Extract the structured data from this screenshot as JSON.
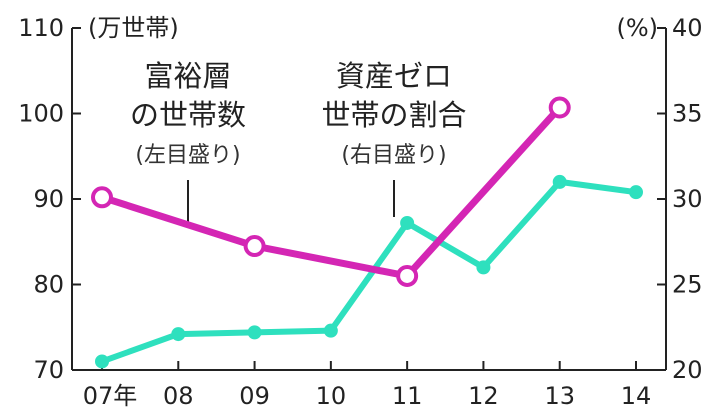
{
  "chart_data": {
    "type": "line",
    "categories": [
      "07年",
      "08",
      "09",
      "10",
      "11",
      "12",
      "13",
      "14"
    ],
    "x": [
      2007,
      2008,
      2009,
      2010,
      2011,
      2012,
      2013,
      2014
    ],
    "left_axis": {
      "unit": "(万世帯)",
      "range": [
        70,
        110
      ],
      "ticks": [
        "70",
        "80",
        "90",
        "100",
        "110"
      ]
    },
    "right_axis": {
      "unit": "(%)",
      "range": [
        20,
        40
      ],
      "ticks": [
        "20",
        "25",
        "30",
        "35",
        "40"
      ]
    },
    "series": [
      {
        "name_lines": [
          "富裕層",
          "の世帯数"
        ],
        "note": "(左目盛り)",
        "axis": "left",
        "color": "#d426b4",
        "points": [
          {
            "x": 2007,
            "y": 90.2
          },
          {
            "x": 2009,
            "y": 84.5
          },
          {
            "x": 2011,
            "y": 81.0
          },
          {
            "x": 2013,
            "y": 100.7
          }
        ]
      },
      {
        "name_lines": [
          "資産ゼロ",
          "世帯の割合"
        ],
        "note": "(右目盛り)",
        "axis": "right",
        "color": "#2ee0be",
        "points": [
          {
            "x": 2007,
            "y": 20.5
          },
          {
            "x": 2008,
            "y": 22.1
          },
          {
            "x": 2009,
            "y": 22.2
          },
          {
            "x": 2010,
            "y": 22.3
          },
          {
            "x": 2011,
            "y": 28.6
          },
          {
            "x": 2012,
            "y": 26.0
          },
          {
            "x": 2013,
            "y": 31.0
          },
          {
            "x": 2014,
            "y": 30.4
          }
        ]
      }
    ],
    "grid": false,
    "legend": "inline labels at top"
  }
}
